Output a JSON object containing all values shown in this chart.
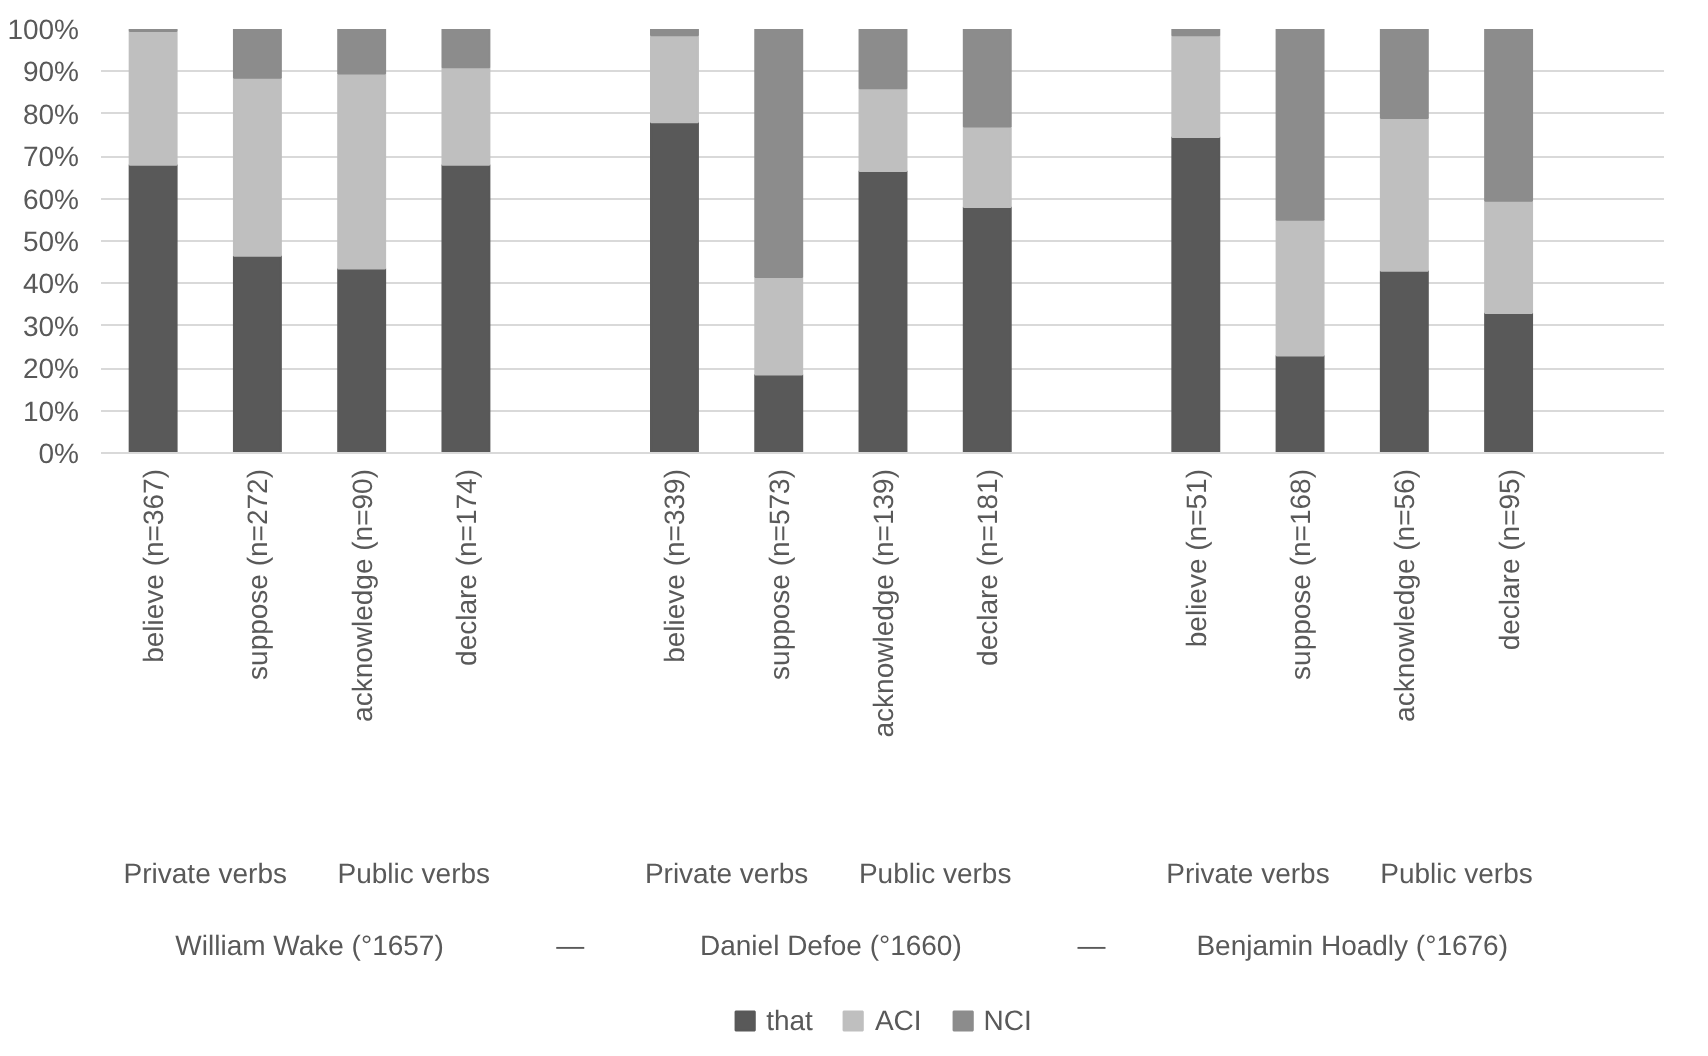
{
  "chart_data": {
    "type": "bar",
    "stacked": true,
    "categories": [
      "believe (n=367)",
      "suppose (n=272)",
      "acknowledge (n=90)",
      "declare (n=174)",
      null,
      "believe (n=339)",
      "suppose (n=573)",
      "acknowledge (n=139)",
      "declare (n=181)",
      null,
      "believe (n=51)",
      "suppose (n=168)",
      "acknowledge (n=56)",
      "declare (n=95)",
      null
    ],
    "series": [
      {
        "name": "that",
        "color": "#595959",
        "values": [
          68,
          46.5,
          43.5,
          68,
          null,
          78,
          18.5,
          66.5,
          58,
          null,
          74.5,
          23,
          43,
          33,
          null
        ]
      },
      {
        "name": "ACI",
        "color": "#bfbfbf",
        "values": [
          31.5,
          42,
          46,
          23,
          null,
          20.5,
          23,
          19.5,
          19,
          null,
          24,
          32,
          36,
          26.5,
          null
        ]
      },
      {
        "name": "NCI",
        "color": "#8c8c8c",
        "values": [
          0.5,
          11.5,
          10.5,
          9,
          null,
          1.5,
          58.5,
          14,
          23,
          null,
          1.5,
          45,
          21,
          40.5,
          null
        ]
      }
    ],
    "ylim": [
      0,
      100
    ],
    "yticks": [
      {
        "value": 0,
        "label": "0%"
      },
      {
        "value": 10,
        "label": "10%"
      },
      {
        "value": 20,
        "label": "20%"
      },
      {
        "value": 30,
        "label": "30%"
      },
      {
        "value": 40,
        "label": "40%"
      },
      {
        "value": 50,
        "label": "50%"
      },
      {
        "value": 60,
        "label": "60%"
      },
      {
        "value": 70,
        "label": "70%"
      },
      {
        "value": 80,
        "label": "80%"
      },
      {
        "value": 90,
        "label": "90%"
      },
      {
        "value": 100,
        "label": "100%"
      }
    ],
    "annotations": [
      "Private verbs",
      "Public verbs",
      "Private verbs",
      "Public verbs",
      "Private verbs",
      "Public verbs",
      "William Wake (°1657)",
      "—",
      "Daniel Defoe (°1660)",
      "—",
      "Benjamin Hoadly (°1676)"
    ],
    "grid": "y",
    "legend": "bottom"
  }
}
